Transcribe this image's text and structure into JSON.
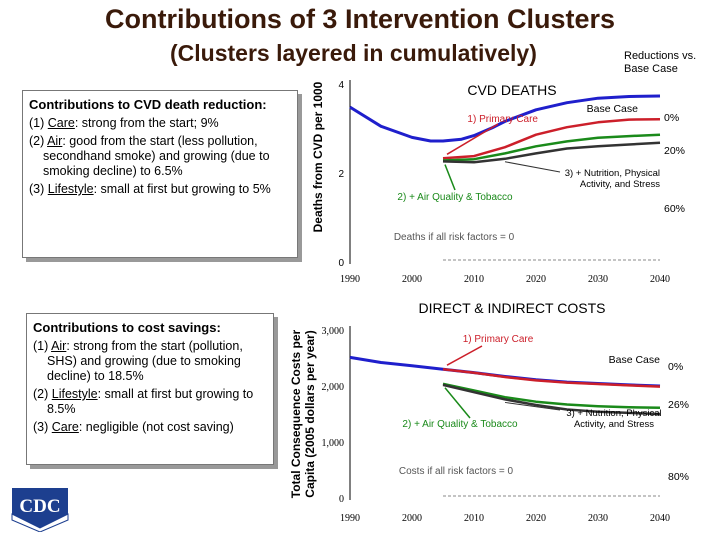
{
  "title": "Contributions of 3 Intervention Clusters",
  "subtitle": "(Clusters layered in cumulatively)",
  "reductions_label": [
    "Reductions vs.",
    "Base Case"
  ],
  "box_deaths": {
    "heading": "Contributions to CVD death reduction:",
    "items": [
      {
        "num": "(1) ",
        "key": "Care",
        "rest": ": strong from the start; 9%"
      },
      {
        "num": "(2) ",
        "key": "Air",
        "rest": ": good from the start (less pollution, secondhand smoke) and growing (due to smoking decline) to 6.5%"
      },
      {
        "num": "(3) ",
        "key": "Lifestyle",
        "rest": ": small at first but growing to 5%"
      }
    ]
  },
  "box_costs": {
    "heading": "Contributions to cost savings:",
    "items": [
      {
        "num": "(1) ",
        "key": "Air",
        "rest": ": strong from the start (pollution, SHS) and growing (due to smoking decline) to 18.5%"
      },
      {
        "num": "(2) ",
        "key": "Lifestyle",
        "rest": ": small at first but growing to 8.5%"
      },
      {
        "num": "(3) ",
        "key": "Care",
        "rest": ": negligible (not cost saving)"
      }
    ]
  },
  "logo_text": "CDC",
  "colors": {
    "base": "#1f1fcc",
    "care": "#cc1f2a",
    "air": "#1a8a1a",
    "lifestyle": "#333333",
    "title": "#3a1a0a"
  },
  "chart_data": [
    {
      "type": "line",
      "title": "CVD DEATHS",
      "ylabel": "Deaths from CVD per 1000",
      "x_ticks": [
        "1990",
        "2000",
        "2010",
        "2020",
        "2030",
        "2040"
      ],
      "y_ticks": [
        "4",
        "2",
        "0"
      ],
      "xlim": [
        1990,
        2040
      ],
      "ylim": [
        0,
        4
      ],
      "series": [
        {
          "name": "Base Case",
          "color_key": "base",
          "x": [
            1990,
            1995,
            2000,
            2003,
            2005,
            2008,
            2010,
            2013,
            2015,
            2020,
            2025,
            2030,
            2035,
            2040
          ],
          "y": [
            3.48,
            3.05,
            2.8,
            2.72,
            2.72,
            2.76,
            2.84,
            3.02,
            3.16,
            3.42,
            3.58,
            3.68,
            3.72,
            3.73
          ]
        },
        {
          "name": "1) Primary Care",
          "color_key": "care",
          "x": [
            2005,
            2010,
            2015,
            2020,
            2025,
            2030,
            2035,
            2040
          ],
          "y": [
            2.33,
            2.38,
            2.58,
            2.86,
            3.03,
            3.14,
            3.2,
            3.21
          ]
        },
        {
          "name": "2) + Air Quality & Tobacco",
          "color_key": "air",
          "x": [
            2005,
            2010,
            2015,
            2020,
            2025,
            2030,
            2035,
            2040
          ],
          "y": [
            2.28,
            2.31,
            2.44,
            2.6,
            2.71,
            2.79,
            2.83,
            2.86
          ]
        },
        {
          "name": "3) + Nutrition, Physical Activity, and Stress",
          "color_key": "lifestyle",
          "x": [
            2005,
            2010,
            2015,
            2020,
            2025,
            2030,
            2035,
            2040
          ],
          "y": [
            2.26,
            2.24,
            2.32,
            2.44,
            2.55,
            2.6,
            2.64,
            2.68
          ]
        }
      ],
      "annotations": {
        "base": "Base Case",
        "care": "1) Primary Care",
        "air": "2) + Air Quality & Tobacco",
        "lifestyle": [
          "3) + Nutrition, Physical",
          "Activity, and Stress"
        ],
        "zero": "Deaths if all risk factors = 0",
        "pct": [
          "0%",
          "20%",
          "60%"
        ]
      }
    },
    {
      "type": "line",
      "title": "DIRECT & INDIRECT COSTS",
      "ylabel": [
        "Total Consequence Costs per",
        "Capita (2005 dollars per year)"
      ],
      "x_ticks": [
        "1990",
        "2000",
        "2010",
        "2020",
        "2030",
        "2040"
      ],
      "y_ticks": [
        "3,000",
        "2,000",
        "1,000",
        "0"
      ],
      "xlim": [
        1990,
        2040
      ],
      "ylim": [
        0,
        3000
      ],
      "series": [
        {
          "name": "Base Case",
          "color_key": "base",
          "x": [
            1990,
            1995,
            2000,
            2005,
            2010,
            2015,
            2020,
            2025,
            2030,
            2035,
            2040
          ],
          "y": [
            2510,
            2420,
            2360,
            2300,
            2240,
            2170,
            2110,
            2070,
            2045,
            2020,
            2000
          ]
        },
        {
          "name": "1) Primary Care",
          "color_key": "care",
          "x": [
            2005,
            2010,
            2015,
            2020,
            2025,
            2030,
            2035,
            2040
          ],
          "y": [
            2300,
            2235,
            2160,
            2100,
            2060,
            2035,
            2010,
            1990
          ]
        },
        {
          "name": "2) + Air Quality & Tobacco",
          "color_key": "air",
          "x": [
            2005,
            2010,
            2015,
            2020,
            2025,
            2030,
            2035,
            2040
          ],
          "y": [
            2040,
            1920,
            1800,
            1720,
            1670,
            1640,
            1620,
            1610
          ]
        },
        {
          "name": "3) + Nutrition, Physical Activity, and Stress",
          "color_key": "lifestyle",
          "x": [
            2005,
            2010,
            2015,
            2020,
            2025,
            2030,
            2035,
            2040
          ],
          "y": [
            2020,
            1890,
            1760,
            1660,
            1580,
            1540,
            1520,
            1500
          ]
        }
      ],
      "annotations": {
        "base": "Base Case",
        "care": "1) Primary Care",
        "air": "2) + Air Quality & Tobacco",
        "lifestyle": [
          "3) + Nutrition, Physical",
          "Activity, and Stress"
        ],
        "zero": "Costs if all risk factors = 0",
        "pct": [
          "0%",
          "26%",
          "80%"
        ]
      }
    }
  ]
}
